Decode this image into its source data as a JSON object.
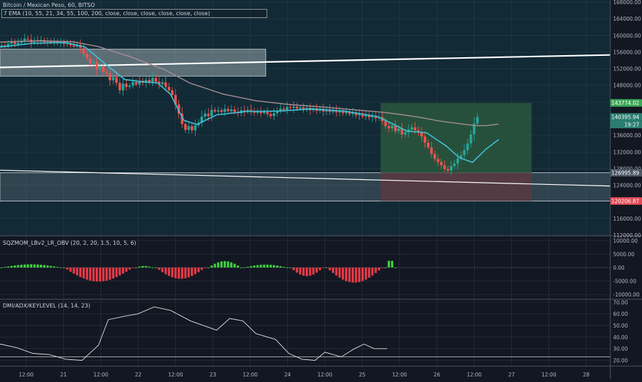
{
  "colors": {
    "background": "#131722",
    "price_pane_bg": "#122a35",
    "grid": "#2a3a47",
    "up_candle": "#26a69a",
    "down_candle": "#ef5350",
    "ema_fast": "#3fc3d8",
    "ema_slow": "#a78f95",
    "trendline": "#ffffff",
    "target_zone": "#2e5e3d",
    "stop_zone": "#5a3a41",
    "hist_positive": "#3ed03c",
    "hist_negative": "#e53a46",
    "adx_line": "#e6e6e6",
    "axis_text": "#b2b5be",
    "tag_green": "#3aa757",
    "tag_teal": "#2a7d6f",
    "tag_grey": "#4b5563",
    "tag_red": "#e04a55"
  },
  "legends": {
    "title": "Bitcoin / Mexican Peso, 60, BITSO",
    "ema": "7 EMA (10, 55, 21, 34, 55, 100, 200, close, close, close, close, close, close)",
    "sqz": "SQZMOM_LBv2_LR_OBV (20, 2, 20, 1.5, 10, 5, 6)",
    "dmi": "DMI/ADX/KEYLEVEL (14, 14, 23)"
  },
  "price_tags": [
    {
      "label": "143774.02",
      "value": 143774,
      "color": "tag_green"
    },
    {
      "label": "140395.94",
      "value": 140396,
      "color": "tag_teal"
    },
    {
      "label": "19:27",
      "value": 138600,
      "color": "tag_teal"
    },
    {
      "label": "126995.89",
      "value": 126996,
      "color": "tag_grey"
    },
    {
      "label": "120206.87",
      "value": 120207,
      "color": "tag_red"
    }
  ],
  "chart_data": [
    {
      "type": "candlestick",
      "title": "Bitcoin / Mexican Peso, 60, BITSO",
      "x_ticks": [
        "12:00",
        "21",
        "12:00",
        "22",
        "12:00",
        "23",
        "12:00",
        "24",
        "12:00",
        "25",
        "12:00",
        "26",
        "12:00",
        "27",
        "12:00",
        "28"
      ],
      "y_ticks": [
        112000,
        116000,
        120000,
        124000,
        128000,
        132000,
        136000,
        140000,
        144000,
        148000,
        152000,
        156000,
        160000,
        164000,
        168000
      ],
      "y_tick_labels": [
        "112000.00",
        "116000.00",
        "120000.00",
        "124000.00",
        "128000.00",
        "132000.00",
        "136000.00",
        "140000.00",
        "144000.00",
        "148000.00",
        "152000.00",
        "156000.00",
        "160000.00",
        "164000.00",
        "168000.00"
      ],
      "ylim": [
        112000,
        168500
      ],
      "xlim": [
        0,
        186
      ],
      "closes": [
        157600,
        157200,
        158000,
        158400,
        157900,
        158200,
        158600,
        159200,
        159000,
        158300,
        158700,
        158500,
        158900,
        158400,
        158600,
        158200,
        158500,
        158100,
        158300,
        157900,
        158000,
        157600,
        157300,
        157700,
        157000,
        155600,
        154500,
        153200,
        153600,
        151800,
        152600,
        151200,
        150900,
        149200,
        150000,
        148600,
        146800,
        148400,
        147600,
        147900,
        148800,
        148200,
        149100,
        148600,
        149300,
        148700,
        149800,
        148900,
        148300,
        148700,
        147600,
        146800,
        145700,
        143400,
        141200,
        138700,
        137300,
        138200,
        137200,
        138400,
        139000,
        140500,
        141200,
        140600,
        142100,
        141700,
        142000,
        141600,
        142300,
        141800,
        142200,
        141600,
        141300,
        142000,
        141700,
        142100,
        141700,
        141400,
        141800,
        141300,
        141600,
        141100,
        140600,
        141300,
        141900,
        142400,
        142100,
        142800,
        142600,
        142900,
        142400,
        142700,
        142200,
        142600,
        142000,
        142500,
        141900,
        142400,
        141700,
        142200,
        141600,
        142000,
        141500,
        141900,
        141300,
        141700,
        141100,
        141500,
        140800,
        141200,
        140500,
        140900,
        140300,
        140700,
        140100,
        140400,
        139400,
        138200,
        137700,
        138300,
        137000,
        137600,
        136200,
        136700,
        137400,
        137900,
        137200,
        136600,
        135700,
        134200,
        133100,
        131500,
        130300,
        129600,
        128800,
        127900,
        127500,
        128600,
        129200,
        130400,
        131200,
        132400,
        134000,
        136200,
        138800,
        140400
      ],
      "series": [
        {
          "name": "EMA 10",
          "color": "ema_fast",
          "points": [
            [
              0,
              157200
            ],
            [
              10,
              158100
            ],
            [
              20,
              158300
            ],
            [
              26,
              157200
            ],
            [
              32,
              153200
            ],
            [
              38,
              149400
            ],
            [
              44,
              148800
            ],
            [
              48,
              148600
            ],
            [
              52,
              145800
            ],
            [
              56,
              139600
            ],
            [
              60,
              138600
            ],
            [
              66,
              140900
            ],
            [
              75,
              141700
            ],
            [
              85,
              141800
            ],
            [
              95,
              142300
            ],
            [
              105,
              141800
            ],
            [
              115,
              140500
            ],
            [
              119,
              139000
            ],
            [
              124,
              137000
            ],
            [
              130,
              136600
            ],
            [
              136,
              133400
            ],
            [
              140,
              130600
            ],
            [
              144,
              129500
            ],
            [
              148,
              132600
            ],
            [
              152,
              135000
            ]
          ]
        },
        {
          "name": "EMA 55",
          "color": "ema_slow",
          "points": [
            [
              0,
              158400
            ],
            [
              12,
              158700
            ],
            [
              22,
              158500
            ],
            [
              30,
              157300
            ],
            [
              40,
              154800
            ],
            [
              50,
              151800
            ],
            [
              58,
              148500
            ],
            [
              68,
              145900
            ],
            [
              78,
              144300
            ],
            [
              88,
              143400
            ],
            [
              98,
              142800
            ],
            [
              108,
              142100
            ],
            [
              116,
              141600
            ],
            [
              122,
              141000
            ],
            [
              128,
              140300
            ],
            [
              134,
              139400
            ],
            [
              140,
              138800
            ],
            [
              145,
              138300
            ],
            [
              148,
              138300
            ],
            [
              152,
              138700
            ]
          ]
        }
      ],
      "trendline_upper": {
        "from": [
          0,
          152300
        ],
        "to": [
          186,
          155300
        ]
      },
      "trendline_lower": {
        "from": [
          0,
          127600
        ],
        "to": [
          186,
          123800
        ]
      },
      "zones": [
        {
          "label": "resistance box",
          "x": [
            0,
            81
          ],
          "y": [
            150200,
            156700
          ]
        },
        {
          "label": "support band",
          "x": [
            0,
            186
          ],
          "y": [
            120200,
            127000
          ]
        },
        {
          "label": "target",
          "x": [
            116,
            162
          ],
          "y": [
            126996,
            143774
          ]
        },
        {
          "label": "stop",
          "x": [
            116,
            162
          ],
          "y": [
            120207,
            126996
          ]
        }
      ]
    },
    {
      "type": "bar",
      "title": "SQZMOM_LBv2_LR_OBV (20, 2, 20, 1.5, 10, 5, 6)",
      "y_ticks": [
        10000,
        5000,
        0,
        -5000,
        -10000
      ],
      "y_tick_labels": [
        "10000.00",
        "5000.00",
        "0.00",
        "-5000.00",
        "-10000.00"
      ],
      "ylim": [
        -11500,
        11500
      ],
      "segments": [
        {
          "x": [
            0,
            18
          ],
          "peak": 1200
        },
        {
          "x": [
            19,
            40
          ],
          "peak": -5200
        },
        {
          "x": [
            41,
            46
          ],
          "peak": 600
        },
        {
          "x": [
            47,
            62
          ],
          "peak": -4200
        },
        {
          "x": [
            63,
            73
          ],
          "peak": 2400
        },
        {
          "x": [
            74,
            87
          ],
          "peak": 1100
        },
        {
          "x": [
            88,
            98
          ],
          "peak": -3200
        },
        {
          "x": [
            99,
            116
          ],
          "peak": -5600
        },
        {
          "x": [
            117,
            120
          ],
          "peak": 2900
        }
      ]
    },
    {
      "type": "line",
      "title": "DMI/ADX/KEYLEVEL (14, 14, 23)",
      "y_ticks": [
        70,
        60,
        50,
        40,
        30,
        20
      ],
      "y_tick_labels": [
        "70.00",
        "60.00",
        "50.00",
        "40.00",
        "30.00",
        "20.00"
      ],
      "ylim": [
        15,
        72
      ],
      "key_level": 23,
      "series": [
        {
          "name": "ADX",
          "color": "adx_line",
          "points": [
            [
              0,
              34
            ],
            [
              5,
              31
            ],
            [
              10,
              26
            ],
            [
              15,
              25
            ],
            [
              20,
              21
            ],
            [
              25,
              20
            ],
            [
              30,
              33
            ],
            [
              33,
              55
            ],
            [
              38,
              58
            ],
            [
              42,
              60
            ],
            [
              47,
              66
            ],
            [
              52,
              63
            ],
            [
              58,
              54
            ],
            [
              66,
              46
            ],
            [
              70,
              56
            ],
            [
              74,
              54
            ],
            [
              78,
              43
            ],
            [
              84,
              38
            ],
            [
              88,
              26
            ],
            [
              92,
              21
            ],
            [
              96,
              20
            ],
            [
              99,
              27
            ],
            [
              104,
              23
            ],
            [
              108,
              30
            ],
            [
              111,
              34
            ],
            [
              114,
              30
            ],
            [
              118,
              30
            ]
          ]
        }
      ]
    }
  ]
}
